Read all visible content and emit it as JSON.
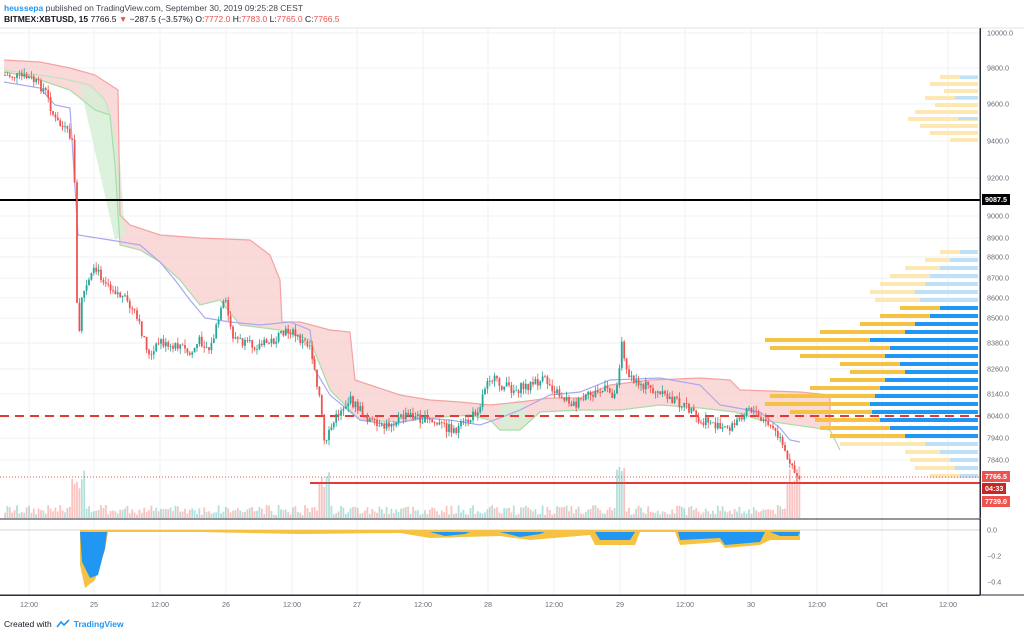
{
  "header": {
    "author": "heussepa",
    "meta": "published on TradingView.com, September 30, 2019 09:25:28 CEST",
    "symbol": "BITMEX:XBTUSD, 15",
    "last": "7766.5",
    "change": "−287.5 (−3.57%)",
    "o_label": "O:",
    "o": "7772.0",
    "h_label": "H:",
    "h": "7783.0",
    "l_label": "L:",
    "l": "7765.0",
    "c_label": "C:",
    "c": "7766.5"
  },
  "price_axis": {
    "ticks": [
      "10000.0",
      "9800.0",
      "9600.0",
      "9400.0",
      "9200.0",
      "9000.0",
      "8900.0",
      "8800.0",
      "8700.0",
      "8600.0",
      "8500.0",
      "8380.0",
      "8260.0",
      "8140.0",
      "8040.0",
      "7940.0",
      "7840.0"
    ]
  },
  "badges": {
    "level_high": "9087.5",
    "last_price": "7766.5",
    "countdown": "04:33",
    "level_low": "7739.0"
  },
  "indicator_axis": {
    "ticks": [
      "0.0",
      "−0.2",
      "−0.4"
    ]
  },
  "time_axis": {
    "ticks": [
      "12:00",
      "25",
      "12:00",
      "26",
      "12:00",
      "27",
      "12:00",
      "28",
      "12:00",
      "29",
      "12:00",
      "30",
      "12:00",
      "Oct",
      "12:00"
    ]
  },
  "colors": {
    "up": "#26a69a",
    "down": "#ef5350",
    "cloud_red": "#f8c8c8",
    "cloud_green": "#cdeccd",
    "vol_blue": "#2196f3",
    "vol_yellow": "#f5c243",
    "baseline_blue": "#9b9bf0"
  },
  "footer": {
    "created_with": "Created with",
    "brand": "TradingView"
  }
}
